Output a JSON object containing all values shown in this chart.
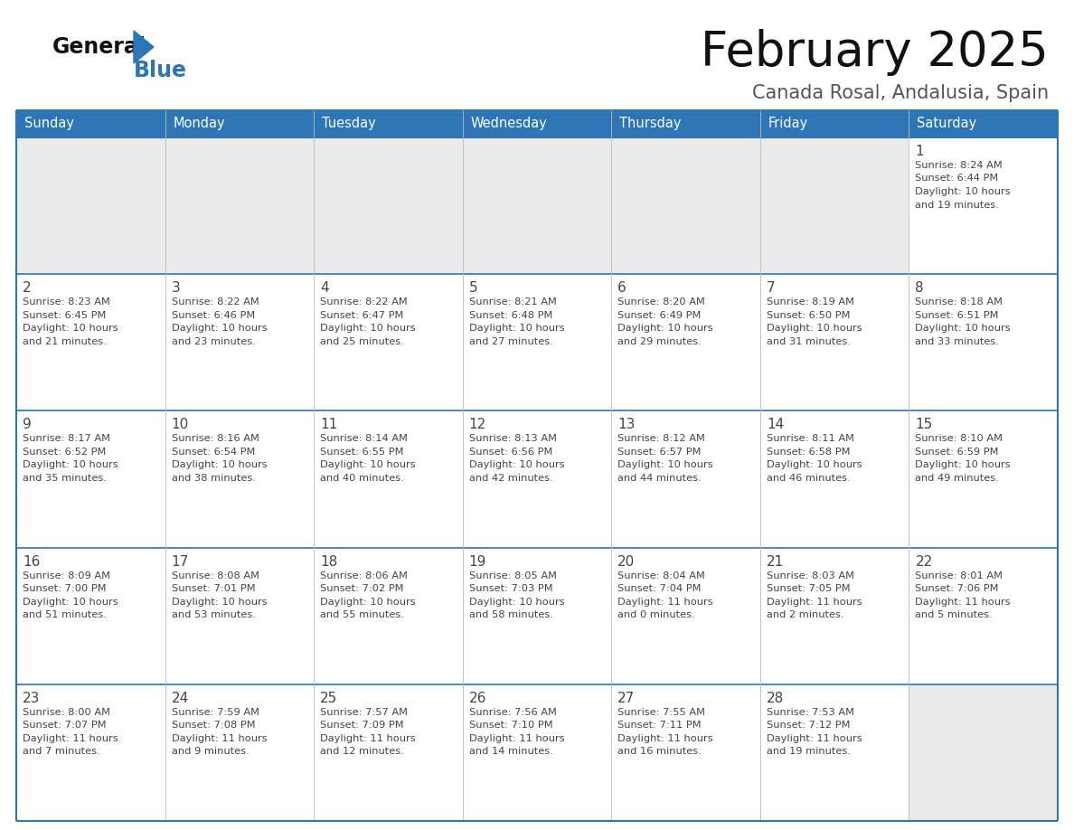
{
  "title": "February 2025",
  "subtitle": "Canada Rosal, Andalusia, Spain",
  "header_bg_color": "#2E75B6",
  "header_text_color": "#FFFFFF",
  "cell_bg_color": "#FFFFFF",
  "alt_cell_bg_color": "#EBEBEB",
  "grid_line_color": "#2E75B6",
  "text_color": "#444444",
  "days_of_week": [
    "Sunday",
    "Monday",
    "Tuesday",
    "Wednesday",
    "Thursday",
    "Friday",
    "Saturday"
  ],
  "calendar_data": [
    [
      {
        "day": "",
        "info": ""
      },
      {
        "day": "",
        "info": ""
      },
      {
        "day": "",
        "info": ""
      },
      {
        "day": "",
        "info": ""
      },
      {
        "day": "",
        "info": ""
      },
      {
        "day": "",
        "info": ""
      },
      {
        "day": "1",
        "info": "Sunrise: 8:24 AM\nSunset: 6:44 PM\nDaylight: 10 hours\nand 19 minutes."
      }
    ],
    [
      {
        "day": "2",
        "info": "Sunrise: 8:23 AM\nSunset: 6:45 PM\nDaylight: 10 hours\nand 21 minutes."
      },
      {
        "day": "3",
        "info": "Sunrise: 8:22 AM\nSunset: 6:46 PM\nDaylight: 10 hours\nand 23 minutes."
      },
      {
        "day": "4",
        "info": "Sunrise: 8:22 AM\nSunset: 6:47 PM\nDaylight: 10 hours\nand 25 minutes."
      },
      {
        "day": "5",
        "info": "Sunrise: 8:21 AM\nSunset: 6:48 PM\nDaylight: 10 hours\nand 27 minutes."
      },
      {
        "day": "6",
        "info": "Sunrise: 8:20 AM\nSunset: 6:49 PM\nDaylight: 10 hours\nand 29 minutes."
      },
      {
        "day": "7",
        "info": "Sunrise: 8:19 AM\nSunset: 6:50 PM\nDaylight: 10 hours\nand 31 minutes."
      },
      {
        "day": "8",
        "info": "Sunrise: 8:18 AM\nSunset: 6:51 PM\nDaylight: 10 hours\nand 33 minutes."
      }
    ],
    [
      {
        "day": "9",
        "info": "Sunrise: 8:17 AM\nSunset: 6:52 PM\nDaylight: 10 hours\nand 35 minutes."
      },
      {
        "day": "10",
        "info": "Sunrise: 8:16 AM\nSunset: 6:54 PM\nDaylight: 10 hours\nand 38 minutes."
      },
      {
        "day": "11",
        "info": "Sunrise: 8:14 AM\nSunset: 6:55 PM\nDaylight: 10 hours\nand 40 minutes."
      },
      {
        "day": "12",
        "info": "Sunrise: 8:13 AM\nSunset: 6:56 PM\nDaylight: 10 hours\nand 42 minutes."
      },
      {
        "day": "13",
        "info": "Sunrise: 8:12 AM\nSunset: 6:57 PM\nDaylight: 10 hours\nand 44 minutes."
      },
      {
        "day": "14",
        "info": "Sunrise: 8:11 AM\nSunset: 6:58 PM\nDaylight: 10 hours\nand 46 minutes."
      },
      {
        "day": "15",
        "info": "Sunrise: 8:10 AM\nSunset: 6:59 PM\nDaylight: 10 hours\nand 49 minutes."
      }
    ],
    [
      {
        "day": "16",
        "info": "Sunrise: 8:09 AM\nSunset: 7:00 PM\nDaylight: 10 hours\nand 51 minutes."
      },
      {
        "day": "17",
        "info": "Sunrise: 8:08 AM\nSunset: 7:01 PM\nDaylight: 10 hours\nand 53 minutes."
      },
      {
        "day": "18",
        "info": "Sunrise: 8:06 AM\nSunset: 7:02 PM\nDaylight: 10 hours\nand 55 minutes."
      },
      {
        "day": "19",
        "info": "Sunrise: 8:05 AM\nSunset: 7:03 PM\nDaylight: 10 hours\nand 58 minutes."
      },
      {
        "day": "20",
        "info": "Sunrise: 8:04 AM\nSunset: 7:04 PM\nDaylight: 11 hours\nand 0 minutes."
      },
      {
        "day": "21",
        "info": "Sunrise: 8:03 AM\nSunset: 7:05 PM\nDaylight: 11 hours\nand 2 minutes."
      },
      {
        "day": "22",
        "info": "Sunrise: 8:01 AM\nSunset: 7:06 PM\nDaylight: 11 hours\nand 5 minutes."
      }
    ],
    [
      {
        "day": "23",
        "info": "Sunrise: 8:00 AM\nSunset: 7:07 PM\nDaylight: 11 hours\nand 7 minutes."
      },
      {
        "day": "24",
        "info": "Sunrise: 7:59 AM\nSunset: 7:08 PM\nDaylight: 11 hours\nand 9 minutes."
      },
      {
        "day": "25",
        "info": "Sunrise: 7:57 AM\nSunset: 7:09 PM\nDaylight: 11 hours\nand 12 minutes."
      },
      {
        "day": "26",
        "info": "Sunrise: 7:56 AM\nSunset: 7:10 PM\nDaylight: 11 hours\nand 14 minutes."
      },
      {
        "day": "27",
        "info": "Sunrise: 7:55 AM\nSunset: 7:11 PM\nDaylight: 11 hours\nand 16 minutes."
      },
      {
        "day": "28",
        "info": "Sunrise: 7:53 AM\nSunset: 7:12 PM\nDaylight: 11 hours\nand 19 minutes."
      },
      {
        "day": "",
        "info": ""
      }
    ]
  ],
  "logo_general_color": "#111111",
  "logo_blue_color": "#2E75B6",
  "logo_triangle_color": "#2E75B6"
}
